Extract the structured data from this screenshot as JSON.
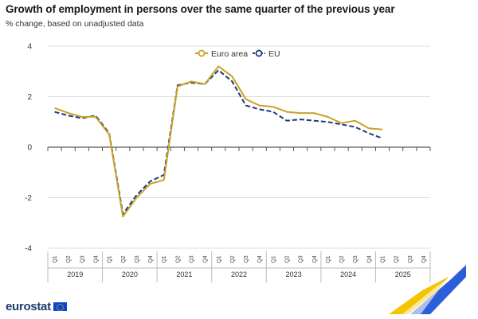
{
  "title": "Growth of employment in persons over the same quarter of the previous year",
  "subtitle": "% change, based on unadjusted data",
  "logo_text": "eurostat",
  "chart_data": {
    "type": "line",
    "quarters": [
      "Q1",
      "Q2",
      "Q3",
      "Q4"
    ],
    "years": [
      "2019",
      "2020",
      "2021",
      "2022",
      "2023",
      "2024",
      "2025"
    ],
    "ylim": [
      -4,
      4
    ],
    "yticks": [
      4,
      2,
      0,
      -2,
      -4
    ],
    "legend_position": "top-center",
    "series": [
      {
        "name": "Euro area",
        "color": "#c9a227",
        "dash": "solid",
        "values": [
          1.55,
          1.35,
          1.2,
          1.2,
          0.5,
          -2.75,
          -2.0,
          -1.45,
          -1.3,
          2.4,
          2.6,
          2.5,
          3.2,
          2.8,
          1.9,
          1.65,
          1.6,
          1.4,
          1.35,
          1.35,
          1.2,
          0.95,
          1.05,
          0.75,
          0.7
        ]
      },
      {
        "name": "EU",
        "color": "#1f3a7a",
        "dash": "dashed",
        "values": [
          1.4,
          1.25,
          1.15,
          1.25,
          0.55,
          -2.65,
          -1.9,
          -1.35,
          -1.1,
          2.45,
          2.55,
          2.5,
          3.05,
          2.6,
          1.65,
          1.5,
          1.4,
          1.05,
          1.1,
          1.05,
          1.0,
          0.9,
          0.8,
          0.55,
          0.35
        ]
      }
    ]
  }
}
